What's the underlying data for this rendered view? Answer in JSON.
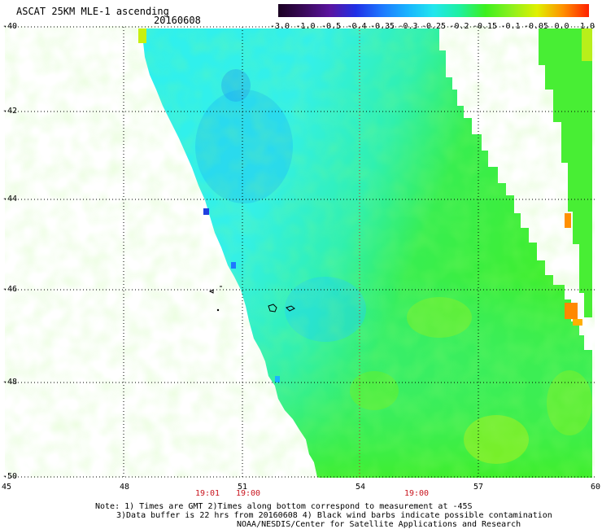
{
  "header": {
    "title": "ASCAT 25KM MLE-1 ascending",
    "date": "20160608"
  },
  "colorbar": {
    "ticks": [
      "-3.0",
      "-1.0",
      "-0.5",
      "-0.4",
      "-0.35",
      "-0.3",
      "-0.25",
      "-0.2",
      "-0.15",
      "-0.1",
      "-0.05",
      "0.0",
      "1.0"
    ],
    "colors": [
      "#1a0022",
      "#3a0a5a",
      "#5a14a0",
      "#2030e6",
      "#1e78ff",
      "#19b4ff",
      "#22e6ee",
      "#1ef0a0",
      "#3cf01e",
      "#8cf01e",
      "#e0f000",
      "#ff9000",
      "#ff2000"
    ]
  },
  "map": {
    "lat_labels": [
      "-40",
      "-42",
      "-44",
      "-46",
      "-48",
      "-50"
    ],
    "lon_labels": [
      "45",
      "48",
      "51",
      "54",
      "57",
      "60"
    ],
    "time_labels": [
      "19:01",
      "19:00",
      "19:00"
    ],
    "lat_range": [
      -50,
      -40
    ],
    "lon_range": [
      45,
      60
    ],
    "gridlines": true
  },
  "notes": {
    "line1": "Note: 1) Times are GMT 2)Times along bottom correspond to measurement at -45S",
    "line2": "3)Data buffer is 22 hrs from 20160608 4) Black wind barbs indicate possible contamination",
    "line3": "NOAA/NESDIS/Center for Satellite Applications and Research"
  }
}
